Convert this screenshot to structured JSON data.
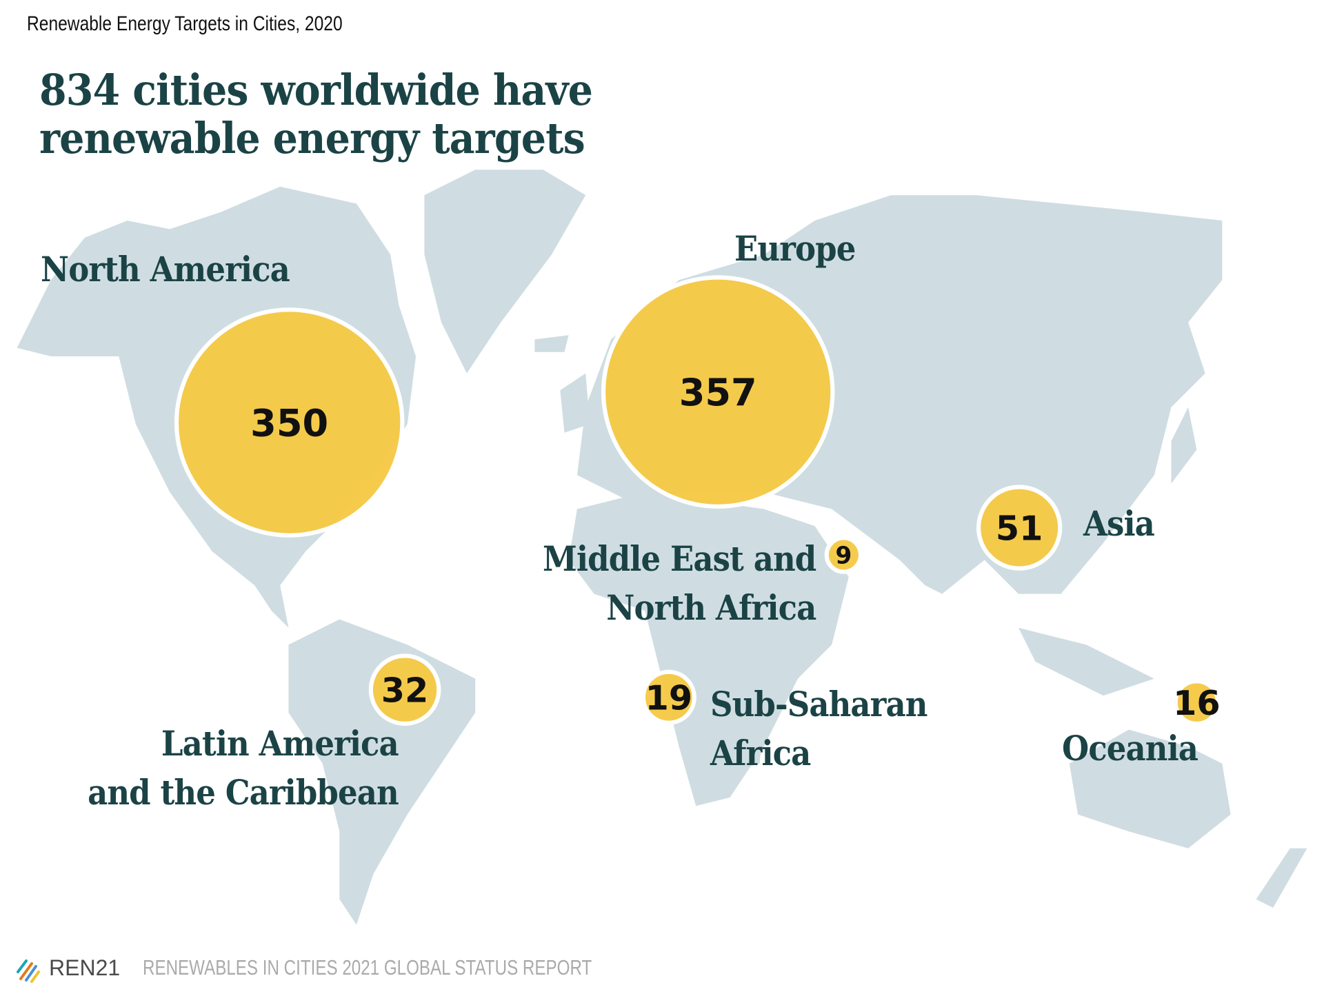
{
  "subtitle": "Renewable Energy Targets in Cities, 2020",
  "headline": {
    "line1": "834 cities worldwide have",
    "line2": "renewable energy targets"
  },
  "colors": {
    "land": "#cfdde2",
    "bubble": "#f5c842",
    "bubble_stroke": "#ffffff",
    "text": "#1b4346",
    "value_text": "#111111"
  },
  "chart_data": {
    "type": "bubble-map",
    "title": "Renewable Energy Targets in Cities, 2020",
    "total": 834,
    "regions": [
      {
        "id": "north-america",
        "label_lines": [
          "North America"
        ],
        "value": 350
      },
      {
        "id": "europe",
        "label_lines": [
          "Europe"
        ],
        "value": 357
      },
      {
        "id": "asia",
        "label_lines": [
          "Asia"
        ],
        "value": 51
      },
      {
        "id": "mena",
        "label_lines": [
          "Middle East and",
          "North Africa"
        ],
        "value": 9
      },
      {
        "id": "latam",
        "label_lines": [
          "Latin America",
          "and the Caribbean"
        ],
        "value": 32
      },
      {
        "id": "ssa",
        "label_lines": [
          "Sub-Saharan",
          "Africa"
        ],
        "value": 19
      },
      {
        "id": "oceania",
        "label_lines": [
          "Oceania"
        ],
        "value": 16
      }
    ]
  },
  "footer": {
    "brand": "REN21",
    "report": "RENEWABLES IN CITIES 2021 GLOBAL STATUS REPORT"
  }
}
